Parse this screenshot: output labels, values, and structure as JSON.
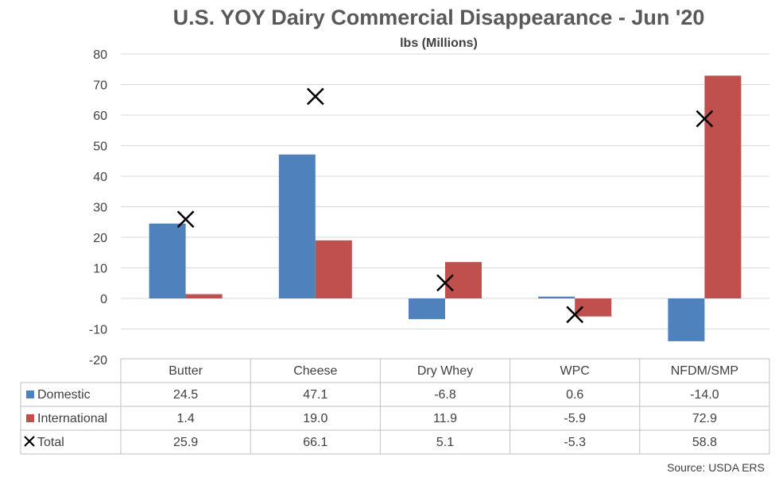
{
  "chart_data": {
    "type": "bar",
    "title": "U.S. YOY Dairy Commercial Disappearance - Jun '20",
    "subtitle": "lbs (Millions)",
    "categories": [
      "Butter",
      "Cheese",
      "Dry Whey",
      "WPC",
      "NFDM/SMP"
    ],
    "series": [
      {
        "name": "Domestic",
        "kind": "bar",
        "color": "#4f81bd",
        "values": [
          24.5,
          47.1,
          -6.8,
          0.6,
          -14.0
        ],
        "display": [
          "24.5",
          "47.1",
          "-6.8",
          "0.6",
          "-14.0"
        ]
      },
      {
        "name": "International",
        "kind": "bar",
        "color": "#c0504d",
        "values": [
          1.4,
          19.0,
          11.9,
          -5.9,
          72.9
        ],
        "display": [
          "1.4",
          "19.0",
          "11.9",
          "-5.9",
          "72.9"
        ]
      },
      {
        "name": "Total",
        "kind": "marker",
        "marker": "x",
        "color": "#000000",
        "values": [
          25.9,
          66.1,
          5.1,
          -5.3,
          58.8
        ],
        "display": [
          "25.9",
          "66.1",
          "5.1",
          "-5.3",
          "58.8"
        ]
      }
    ],
    "ylim": [
      -20,
      80
    ],
    "yticks": [
      -20,
      -10,
      0,
      10,
      20,
      30,
      40,
      50,
      60,
      70,
      80
    ],
    "grid": true,
    "legend": "data-table",
    "source": "Source: USDA ERS"
  }
}
